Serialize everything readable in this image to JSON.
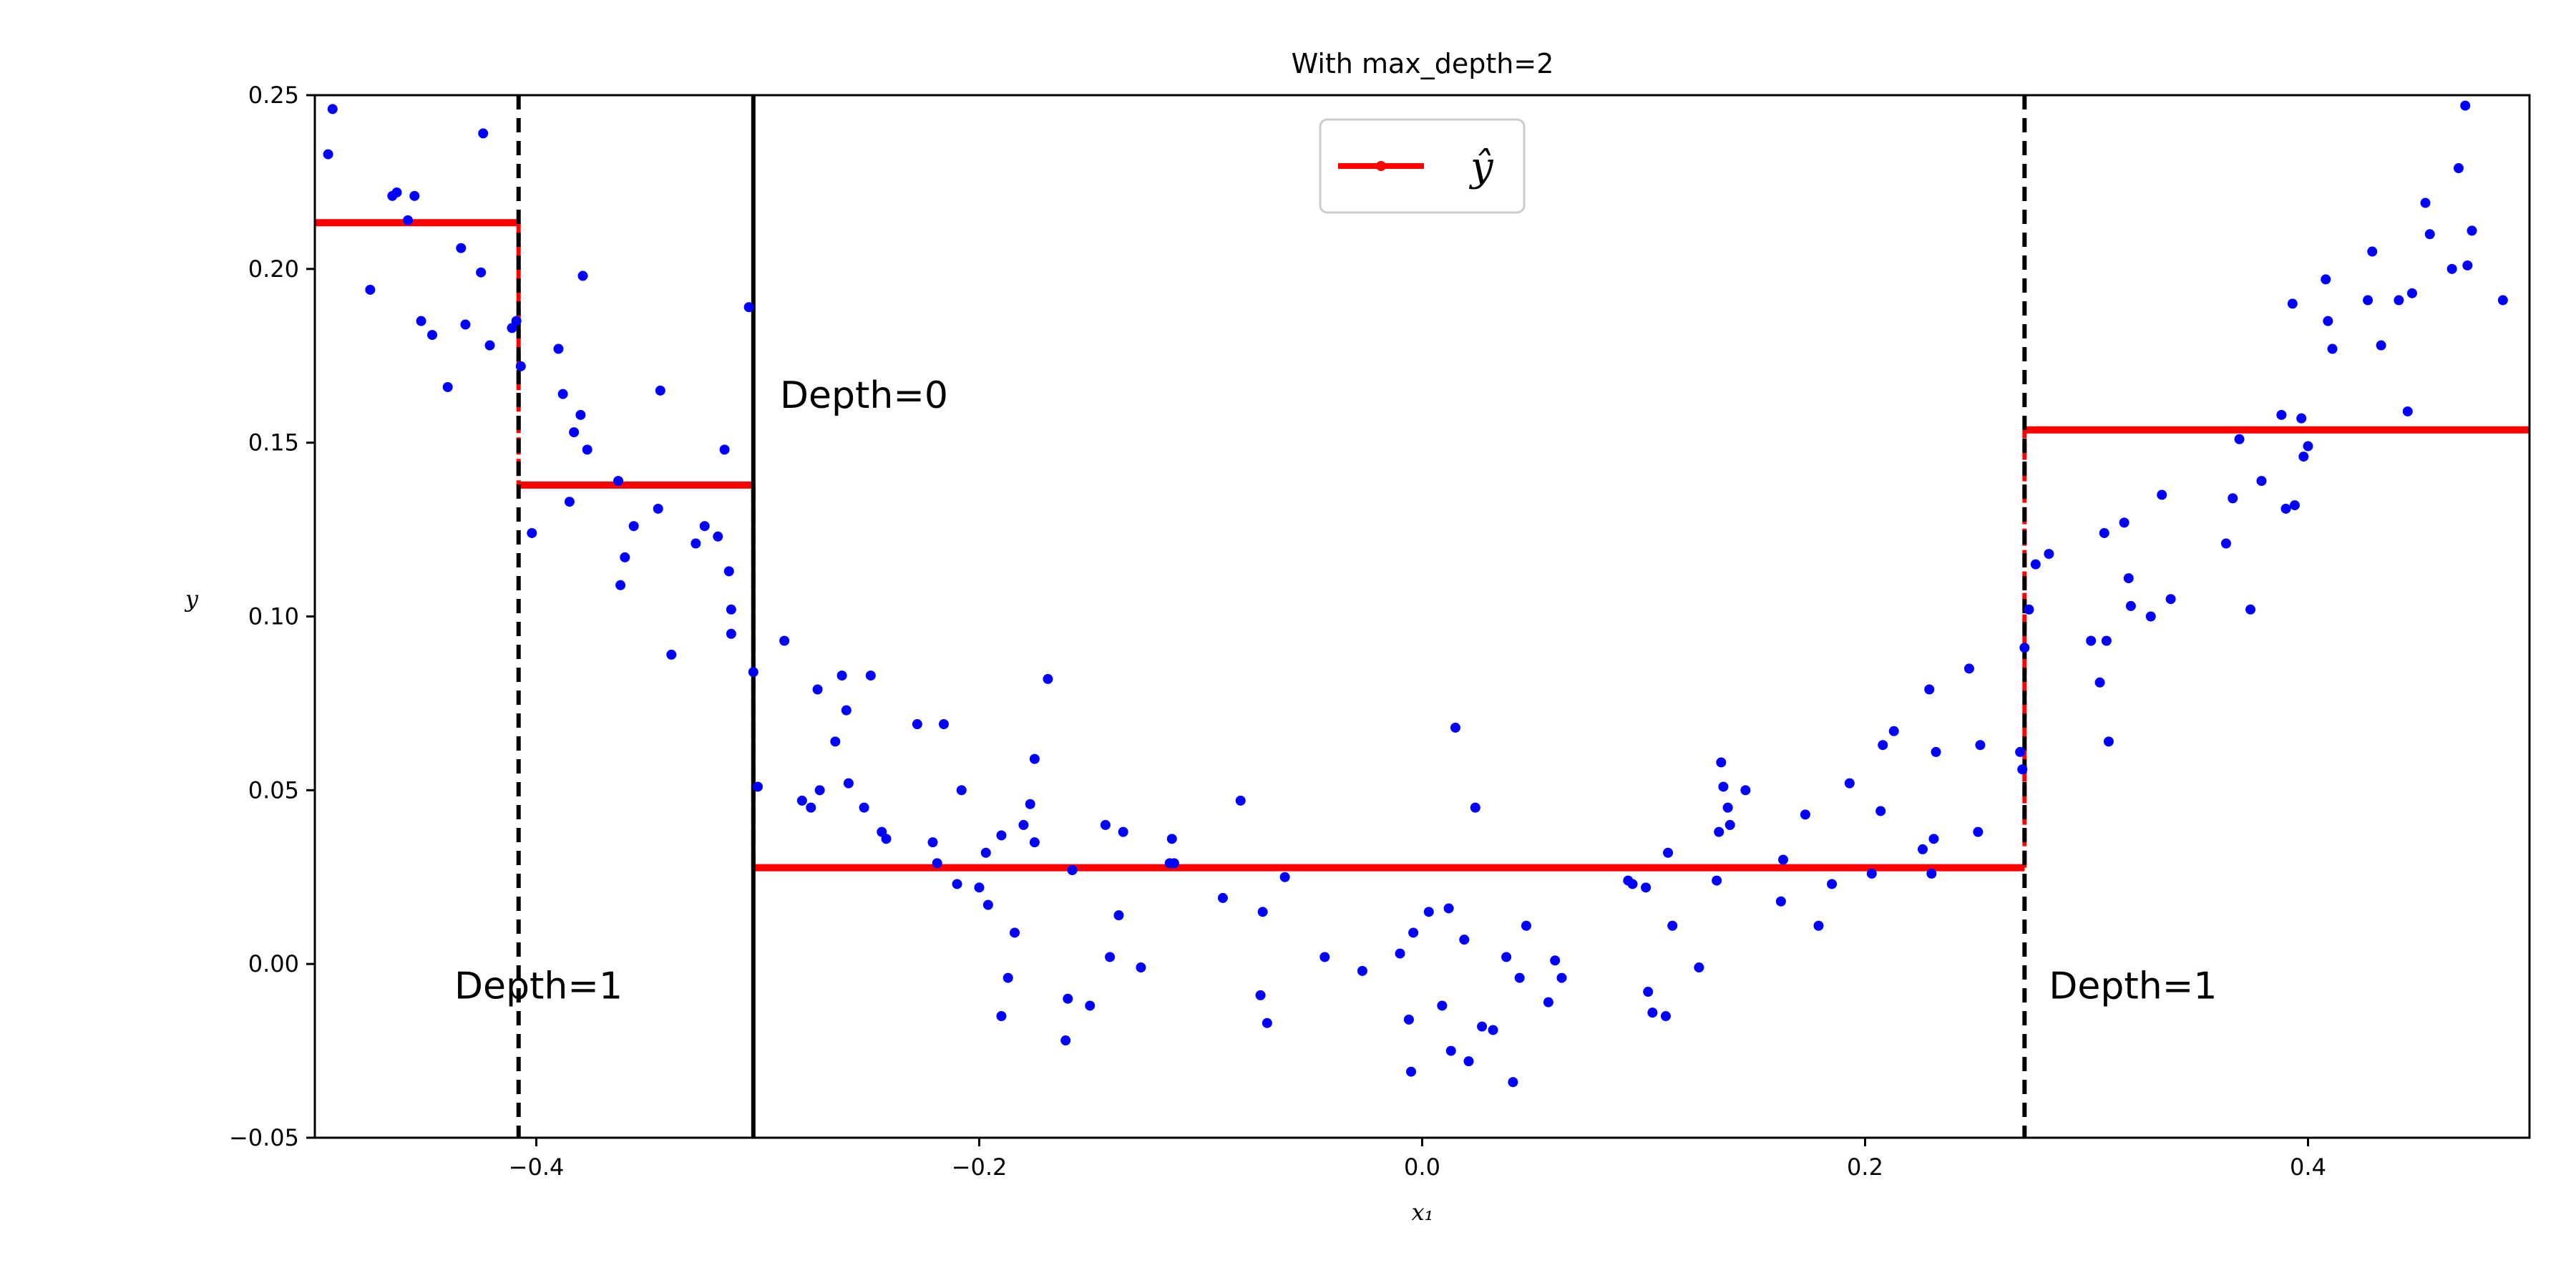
{
  "chart_data": {
    "type": "scatter",
    "title": "With max_depth=2",
    "xlabel": "x₁",
    "ylabel": "y",
    "xlim": [
      -0.5,
      0.5
    ],
    "ylim": [
      -0.05,
      0.25
    ],
    "grid": false,
    "legend": {
      "location": "top-center",
      "entries": [
        "ŷ"
      ]
    },
    "x_ticks": [
      -0.4,
      -0.2,
      0.0,
      0.2,
      0.4
    ],
    "x_tick_labels": [
      "−0.4",
      "−0.2",
      "0.0",
      "0.2",
      "0.4"
    ],
    "y_ticks": [
      -0.05,
      0.0,
      0.05,
      0.1,
      0.15,
      0.2,
      0.25
    ],
    "y_tick_labels": [
      "−0.05",
      "0.00",
      "0.05",
      "0.10",
      "0.15",
      "0.20",
      "0.25"
    ],
    "colors": {
      "points": "#0000ff",
      "prediction": "#ff0000",
      "split_lines": "#000000"
    },
    "series": [
      {
        "kind": "points",
        "points": [
          [
            -0.494,
            0.233
          ],
          [
            -0.492,
            0.246
          ],
          [
            -0.475,
            0.194
          ],
          [
            -0.465,
            0.221
          ],
          [
            -0.463,
            0.222
          ],
          [
            -0.458,
            0.214
          ],
          [
            -0.455,
            0.221
          ],
          [
            -0.452,
            0.185
          ],
          [
            -0.447,
            0.181
          ],
          [
            -0.44,
            0.166
          ],
          [
            -0.434,
            0.206
          ],
          [
            -0.432,
            0.184
          ],
          [
            -0.425,
            0.199
          ],
          [
            -0.424,
            0.239
          ],
          [
            -0.421,
            0.178
          ],
          [
            -0.411,
            0.183
          ],
          [
            -0.409,
            0.185
          ],
          [
            -0.407,
            0.172
          ],
          [
            -0.402,
            0.124
          ],
          [
            -0.39,
            0.177
          ],
          [
            -0.388,
            0.164
          ],
          [
            -0.385,
            0.133
          ],
          [
            -0.383,
            0.153
          ],
          [
            -0.38,
            0.158
          ],
          [
            -0.379,
            0.198
          ],
          [
            -0.377,
            0.148
          ],
          [
            -0.363,
            0.139
          ],
          [
            -0.362,
            0.109
          ],
          [
            -0.36,
            0.117
          ],
          [
            -0.356,
            0.126
          ],
          [
            -0.345,
            0.131
          ],
          [
            -0.344,
            0.165
          ],
          [
            -0.339,
            0.089
          ],
          [
            -0.328,
            0.121
          ],
          [
            -0.324,
            0.126
          ],
          [
            -0.318,
            0.123
          ],
          [
            -0.315,
            0.148
          ],
          [
            -0.313,
            0.113
          ],
          [
            -0.312,
            0.102
          ],
          [
            -0.312,
            0.095
          ],
          [
            -0.304,
            0.189
          ],
          [
            -0.302,
            0.084
          ],
          [
            -0.3,
            0.051
          ],
          [
            -0.288,
            0.093
          ],
          [
            -0.28,
            0.047
          ],
          [
            -0.276,
            0.045
          ],
          [
            -0.273,
            0.079
          ],
          [
            -0.272,
            0.05
          ],
          [
            -0.265,
            0.064
          ],
          [
            -0.262,
            0.083
          ],
          [
            -0.26,
            0.073
          ],
          [
            -0.259,
            0.052
          ],
          [
            -0.252,
            0.045
          ],
          [
            -0.249,
            0.083
          ],
          [
            -0.244,
            0.038
          ],
          [
            -0.242,
            0.036
          ],
          [
            -0.228,
            0.069
          ],
          [
            -0.221,
            0.035
          ],
          [
            -0.219,
            0.029
          ],
          [
            -0.216,
            0.069
          ],
          [
            -0.21,
            0.023
          ],
          [
            -0.208,
            0.05
          ],
          [
            -0.2,
            0.022
          ],
          [
            -0.197,
            0.032
          ],
          [
            -0.196,
            0.017
          ],
          [
            -0.19,
            -0.015
          ],
          [
            -0.19,
            0.037
          ],
          [
            -0.187,
            -0.004
          ],
          [
            -0.184,
            0.009
          ],
          [
            -0.18,
            0.04
          ],
          [
            -0.177,
            0.046
          ],
          [
            -0.175,
            0.059
          ],
          [
            -0.175,
            0.035
          ],
          [
            -0.169,
            0.082
          ],
          [
            -0.161,
            -0.022
          ],
          [
            -0.16,
            -0.01
          ],
          [
            -0.158,
            0.027
          ],
          [
            -0.15,
            -0.012
          ],
          [
            -0.143,
            0.04
          ],
          [
            -0.141,
            0.002
          ],
          [
            -0.137,
            0.014
          ],
          [
            -0.135,
            0.038
          ],
          [
            -0.127,
            -0.001
          ],
          [
            -0.113,
            0.036
          ],
          [
            -0.114,
            0.029
          ],
          [
            -0.112,
            0.029
          ],
          [
            -0.09,
            0.019
          ],
          [
            -0.082,
            0.047
          ],
          [
            -0.073,
            -0.009
          ],
          [
            -0.072,
            0.015
          ],
          [
            -0.07,
            -0.017
          ],
          [
            -0.062,
            0.025
          ],
          [
            -0.044,
            0.002
          ],
          [
            -0.027,
            -0.002
          ],
          [
            -0.01,
            0.003
          ],
          [
            -0.005,
            -0.031
          ],
          [
            -0.006,
            -0.016
          ],
          [
            -0.004,
            0.009
          ],
          [
            0.003,
            0.015
          ],
          [
            0.009,
            -0.012
          ],
          [
            0.012,
            0.016
          ],
          [
            0.013,
            -0.025
          ],
          [
            0.015,
            0.068
          ],
          [
            0.019,
            0.007
          ],
          [
            0.021,
            -0.028
          ],
          [
            0.024,
            0.045
          ],
          [
            0.027,
            -0.018
          ],
          [
            0.032,
            -0.019
          ],
          [
            0.038,
            0.002
          ],
          [
            0.041,
            -0.034
          ],
          [
            0.044,
            -0.004
          ],
          [
            0.047,
            0.011
          ],
          [
            0.057,
            -0.011
          ],
          [
            0.06,
            0.001
          ],
          [
            0.063,
            -0.004
          ],
          [
            0.093,
            0.024
          ],
          [
            0.095,
            0.023
          ],
          [
            0.102,
            -0.008
          ],
          [
            0.101,
            0.022
          ],
          [
            0.104,
            -0.014
          ],
          [
            0.11,
            -0.015
          ],
          [
            0.111,
            0.032
          ],
          [
            0.113,
            0.011
          ],
          [
            0.125,
            -0.001
          ],
          [
            0.133,
            0.024
          ],
          [
            0.134,
            0.038
          ],
          [
            0.135,
            0.058
          ],
          [
            0.136,
            0.051
          ],
          [
            0.138,
            0.045
          ],
          [
            0.139,
            0.04
          ],
          [
            0.146,
            0.05
          ],
          [
            0.162,
            0.018
          ],
          [
            0.163,
            0.03
          ],
          [
            0.173,
            0.043
          ],
          [
            0.179,
            0.011
          ],
          [
            0.185,
            0.023
          ],
          [
            0.193,
            0.052
          ],
          [
            0.203,
            0.026
          ],
          [
            0.207,
            0.044
          ],
          [
            0.208,
            0.063
          ],
          [
            0.213,
            0.067
          ],
          [
            0.226,
            0.033
          ],
          [
            0.229,
            0.079
          ],
          [
            0.23,
            0.026
          ],
          [
            0.231,
            0.036
          ],
          [
            0.232,
            0.061
          ],
          [
            0.247,
            0.085
          ],
          [
            0.251,
            0.038
          ],
          [
            0.252,
            0.063
          ],
          [
            0.27,
            0.061
          ],
          [
            0.271,
            0.056
          ],
          [
            0.272,
            0.091
          ],
          [
            0.274,
            0.102
          ],
          [
            0.277,
            0.115
          ],
          [
            0.283,
            0.118
          ],
          [
            0.302,
            0.093
          ],
          [
            0.306,
            0.081
          ],
          [
            0.308,
            0.124
          ],
          [
            0.309,
            0.093
          ],
          [
            0.31,
            0.064
          ],
          [
            0.317,
            0.127
          ],
          [
            0.319,
            0.111
          ],
          [
            0.32,
            0.103
          ],
          [
            0.329,
            0.1
          ],
          [
            0.334,
            0.135
          ],
          [
            0.338,
            0.105
          ],
          [
            0.363,
            0.121
          ],
          [
            0.366,
            0.134
          ],
          [
            0.369,
            0.151
          ],
          [
            0.374,
            0.102
          ],
          [
            0.379,
            0.139
          ],
          [
            0.388,
            0.158
          ],
          [
            0.39,
            0.131
          ],
          [
            0.393,
            0.19
          ],
          [
            0.394,
            0.132
          ],
          [
            0.397,
            0.157
          ],
          [
            0.398,
            0.146
          ],
          [
            0.4,
            0.149
          ],
          [
            0.408,
            0.197
          ],
          [
            0.409,
            0.185
          ],
          [
            0.411,
            0.177
          ],
          [
            0.427,
            0.191
          ],
          [
            0.429,
            0.205
          ],
          [
            0.433,
            0.178
          ],
          [
            0.441,
            0.191
          ],
          [
            0.445,
            0.159
          ],
          [
            0.447,
            0.193
          ],
          [
            0.453,
            0.219
          ],
          [
            0.455,
            0.21
          ],
          [
            0.465,
            0.2
          ],
          [
            0.468,
            0.229
          ],
          [
            0.471,
            0.247
          ],
          [
            0.472,
            0.201
          ],
          [
            0.474,
            0.211
          ],
          [
            0.488,
            0.191
          ]
        ]
      },
      {
        "name": "ŷ",
        "kind": "step",
        "segments": [
          {
            "x_start": -0.5,
            "x_end": -0.408,
            "y": 0.2133
          },
          {
            "x_start": -0.408,
            "x_end": -0.302,
            "y": 0.1378
          },
          {
            "x_start": -0.302,
            "x_end": 0.272,
            "y": 0.0277
          },
          {
            "x_start": 0.272,
            "x_end": 0.5,
            "y": 0.1537
          }
        ]
      }
    ],
    "split_lines": [
      {
        "x": -0.302,
        "style": "solid"
      },
      {
        "x": -0.408,
        "style": "dashed"
      },
      {
        "x": 0.272,
        "style": "dashed"
      }
    ],
    "annotations": [
      {
        "text": "Depth=0",
        "x": -0.29,
        "y": 0.16
      },
      {
        "text": "Depth=1",
        "x": -0.437,
        "y": -0.01
      },
      {
        "text": "Depth=1",
        "x": 0.283,
        "y": -0.01
      }
    ]
  }
}
